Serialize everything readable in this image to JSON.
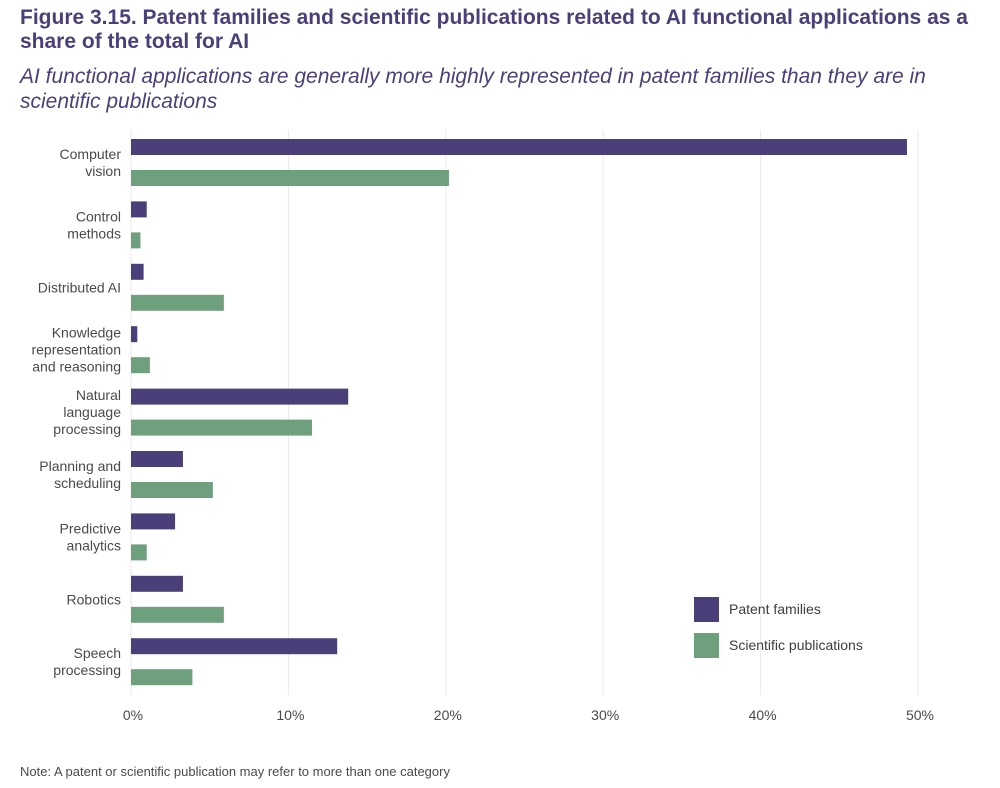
{
  "figure": {
    "title": "Figure 3.15. Patent families and scientific publications related to AI functional applications as a share of the total for AI",
    "subtitle": "AI functional applications are generally more highly represented in patent families than they are in scientific publications",
    "note": "Note: A patent or scientific publication may refer to more than one category"
  },
  "chart_data": {
    "type": "bar",
    "orientation": "horizontal",
    "categories": [
      [
        "Computer",
        "vision"
      ],
      [
        "Control",
        "methods"
      ],
      [
        "Distributed AI"
      ],
      [
        "Knowledge",
        "representation",
        "and reasoning"
      ],
      [
        "Natural",
        "language",
        "processing"
      ],
      [
        "Planning and",
        "scheduling"
      ],
      [
        "Predictive",
        "analytics"
      ],
      [
        "Robotics"
      ],
      [
        "Speech",
        "processing"
      ]
    ],
    "series": [
      {
        "name": "Patent families",
        "color": "#4b3f7a",
        "values": [
          49.3,
          1.0,
          0.8,
          0.4,
          13.8,
          3.3,
          2.8,
          3.3,
          13.1
        ]
      },
      {
        "name": "Scientific publications",
        "color": "#6fa07e",
        "values": [
          20.2,
          0.6,
          5.9,
          1.2,
          11.5,
          5.2,
          1.0,
          5.9,
          3.9
        ]
      }
    ],
    "xlim": [
      0,
      50
    ],
    "xticks": [
      0,
      10,
      20,
      30,
      40,
      50
    ],
    "tick_format": "{v}%",
    "grid": "vertical",
    "legend_position": "bottom-right"
  }
}
